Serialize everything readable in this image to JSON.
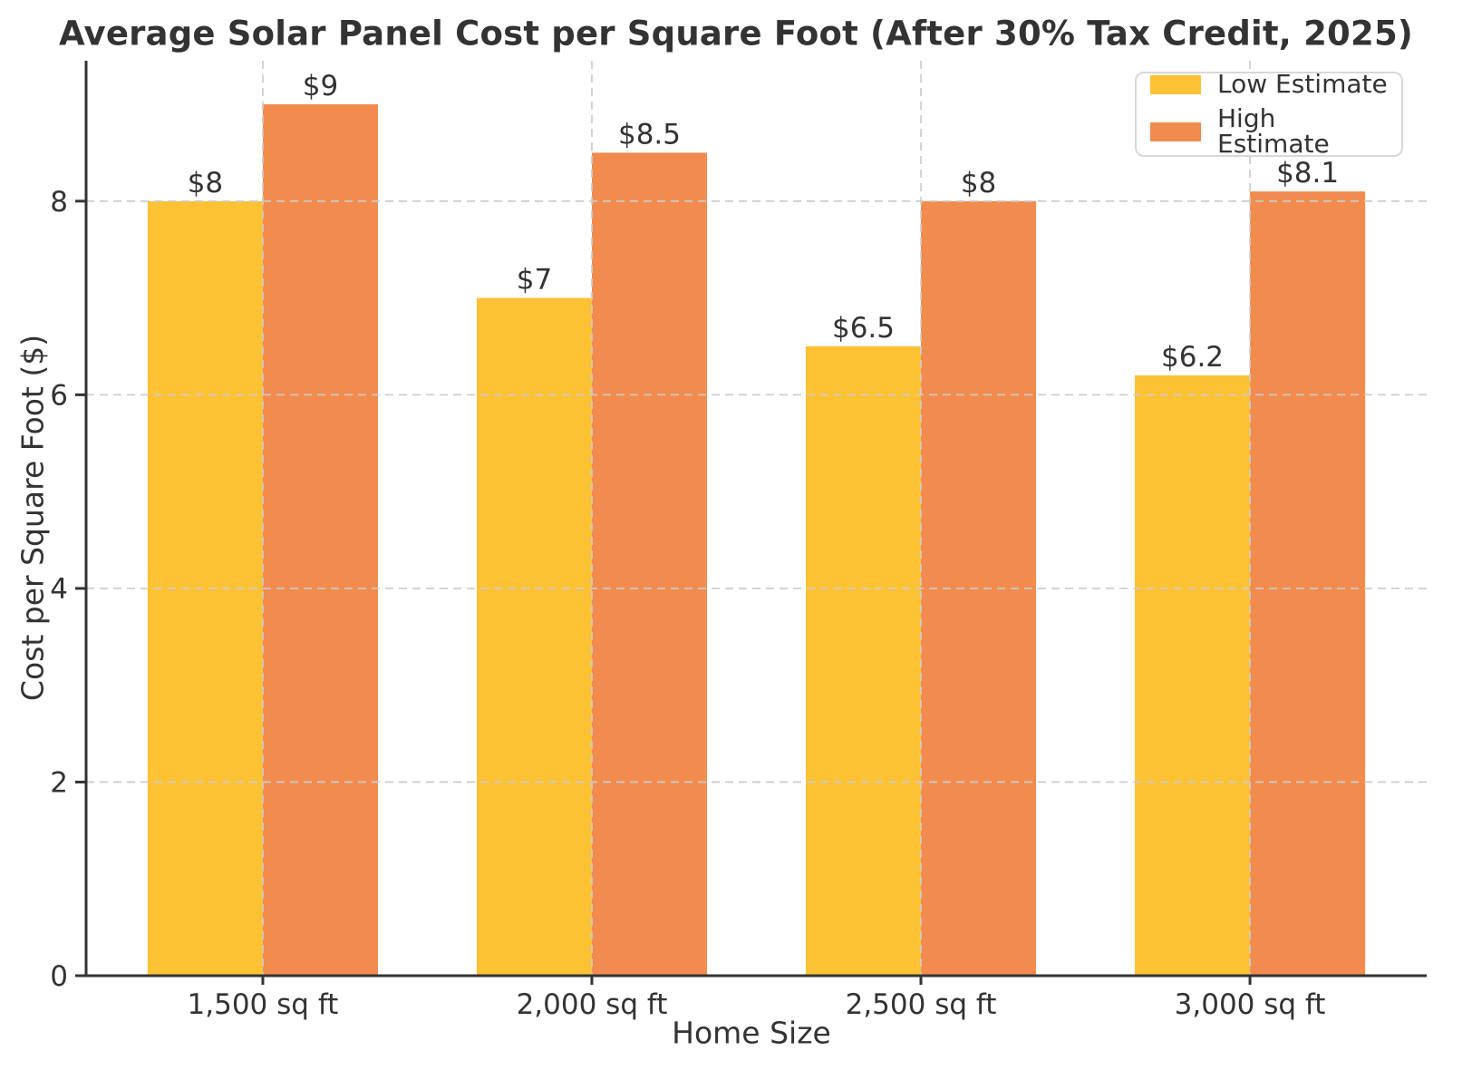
{
  "chart_data": {
    "type": "bar",
    "title": "Average Solar Panel Cost per Square Foot (After 30% Tax Credit, 2025)",
    "xlabel": "Home Size",
    "ylabel": "Cost per Square Foot ($)",
    "categories": [
      "1,500 sq ft",
      "2,000 sq ft",
      "2,500 sq ft",
      "3,000 sq ft"
    ],
    "series": [
      {
        "name": "Low Estimate",
        "color": "#FDC134",
        "values": [
          8,
          7,
          6.5,
          6.2
        ],
        "bar_labels": [
          "$8",
          "$7",
          "$6.5",
          "$6.2"
        ]
      },
      {
        "name": "High Estimate",
        "color": "#F28B4E",
        "values": [
          9,
          8.5,
          8,
          8.1
        ],
        "bar_labels": [
          "$9",
          "$8.5",
          "$8",
          "$8.1"
        ]
      }
    ],
    "y_ticks": [
      0,
      2,
      4,
      6,
      8
    ],
    "y_tick_labels": [
      "0",
      "2",
      "4",
      "6",
      "8"
    ],
    "ylim": [
      0,
      9.45
    ],
    "grid": "dashed-horizontal-and-vertical",
    "legend_position": "top-right"
  },
  "colors": {
    "text": "#333333",
    "axis": "#333333",
    "grid": "#cccccc",
    "background": "#ffffff"
  }
}
